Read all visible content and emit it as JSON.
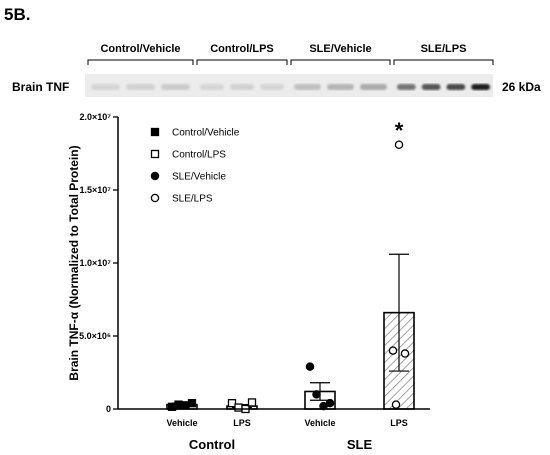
{
  "panel_label": "5B.",
  "blot": {
    "row_label": "Brain TNF",
    "size_label": "26 kDa",
    "lanes": [
      "Control/Vehicle",
      "Control/LPS",
      "SLE/Vehicle",
      "SLE/LPS"
    ],
    "band_darkness": [
      [
        0.1,
        0.12,
        0.15
      ],
      [
        0.1,
        0.12,
        0.1
      ],
      [
        0.2,
        0.25,
        0.3
      ],
      [
        0.55,
        0.7,
        0.75,
        0.95
      ]
    ]
  },
  "chart_data": {
    "type": "bar",
    "title": "",
    "xlabel": "",
    "ylabel": "Brain TNF-α (Normalized to Total Protein)",
    "ylim": [
      0,
      20000000
    ],
    "y_ticks": [
      0,
      5000000,
      10000000,
      15000000,
      20000000
    ],
    "y_tick_labels": [
      "0",
      "5.0×10⁶",
      "1.0×10⁷",
      "1.5×10⁷",
      "2.0×10⁷"
    ],
    "categories": [
      "Vehicle",
      "LPS",
      "Vehicle",
      "LPS"
    ],
    "groups": [
      {
        "label": "Control",
        "categories": [
          0,
          1
        ]
      },
      {
        "label": "SLE",
        "categories": [
          2,
          3
        ]
      }
    ],
    "series": [
      {
        "name": "Control/Vehicle",
        "marker": "filled-square",
        "bar_fill": "white",
        "mean": 300000,
        "sem": 100000,
        "points": [
          150000,
          300000,
          250000,
          400000
        ]
      },
      {
        "name": "Control/LPS",
        "marker": "open-square",
        "bar_fill": "white",
        "mean": 200000,
        "sem": 100000,
        "points": [
          400000,
          100000,
          0,
          450000
        ]
      },
      {
        "name": "SLE/Vehicle",
        "marker": "filled-circle",
        "bar_fill": "white",
        "mean": 1200000,
        "sem": 600000,
        "points": [
          2900000,
          1000000,
          200000,
          400000
        ]
      },
      {
        "name": "SLE/LPS",
        "marker": "open-circle",
        "bar_fill": "hatched",
        "mean": 6600000,
        "sem": 4000000,
        "points": [
          18100000,
          4000000,
          3800000,
          300000
        ]
      }
    ],
    "annotations": [
      {
        "text": "*",
        "category": 3
      }
    ],
    "legend": "top-left",
    "colors": {
      "ink": "#000000",
      "hatch": "#7f7f7f"
    }
  }
}
